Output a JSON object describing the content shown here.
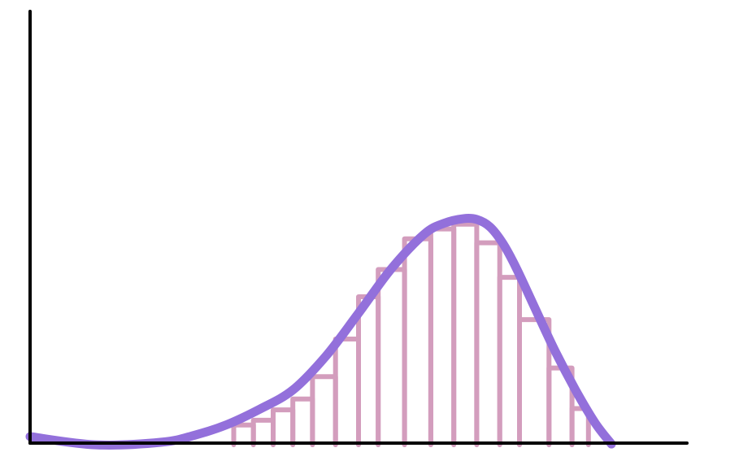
{
  "chart_data": {
    "type": "bar",
    "title": "",
    "xlabel": "",
    "ylabel": "",
    "grid": false,
    "legend": "none",
    "xlim": [
      0,
      100
    ],
    "ylim": [
      0,
      100
    ],
    "bars": [
      {
        "x0": 31,
        "x1": 34,
        "value": 4.2
      },
      {
        "x0": 34,
        "x1": 37,
        "value": 5.3
      },
      {
        "x0": 37,
        "x1": 40,
        "value": 7.7
      },
      {
        "x0": 40,
        "x1": 43,
        "value": 10.2
      },
      {
        "x0": 43,
        "x1": 46.5,
        "value": 15.4
      },
      {
        "x0": 46.5,
        "x1": 50,
        "value": 24.1
      },
      {
        "x0": 50,
        "x1": 53,
        "value": 33.9
      },
      {
        "x0": 53,
        "x1": 57,
        "value": 40.2
      },
      {
        "x0": 57,
        "x1": 61,
        "value": 47.3
      },
      {
        "x0": 61,
        "x1": 64.5,
        "value": 49.6
      },
      {
        "x0": 64.5,
        "x1": 68,
        "value": 50.7
      },
      {
        "x0": 68,
        "x1": 71.5,
        "value": 46.4
      },
      {
        "x0": 71.5,
        "x1": 74.5,
        "value": 38.4
      },
      {
        "x0": 74.5,
        "x1": 79,
        "value": 28.6
      },
      {
        "x0": 79,
        "x1": 82.5,
        "value": 17.4
      },
      {
        "x0": 82.5,
        "x1": 85,
        "value": 8.0
      }
    ],
    "curve": {
      "x": [
        0,
        10,
        20,
        25,
        30,
        35,
        40,
        45,
        50,
        55,
        60,
        63,
        66,
        68,
        70,
        72,
        74,
        77,
        80,
        83,
        86,
        88.5
      ],
      "y": [
        1.5,
        -0.4,
        0.2,
        1.8,
        4.3,
        7.9,
        12.3,
        20.1,
        30.1,
        40.4,
        48.4,
        50.9,
        52.0,
        51.8,
        50.1,
        46.2,
        40.6,
        30.8,
        21.1,
        12.4,
        4.7,
        -0.2
      ]
    },
    "colors": {
      "curve": "#9370db",
      "bars": "#d39dbd",
      "axis": "#000000"
    }
  }
}
